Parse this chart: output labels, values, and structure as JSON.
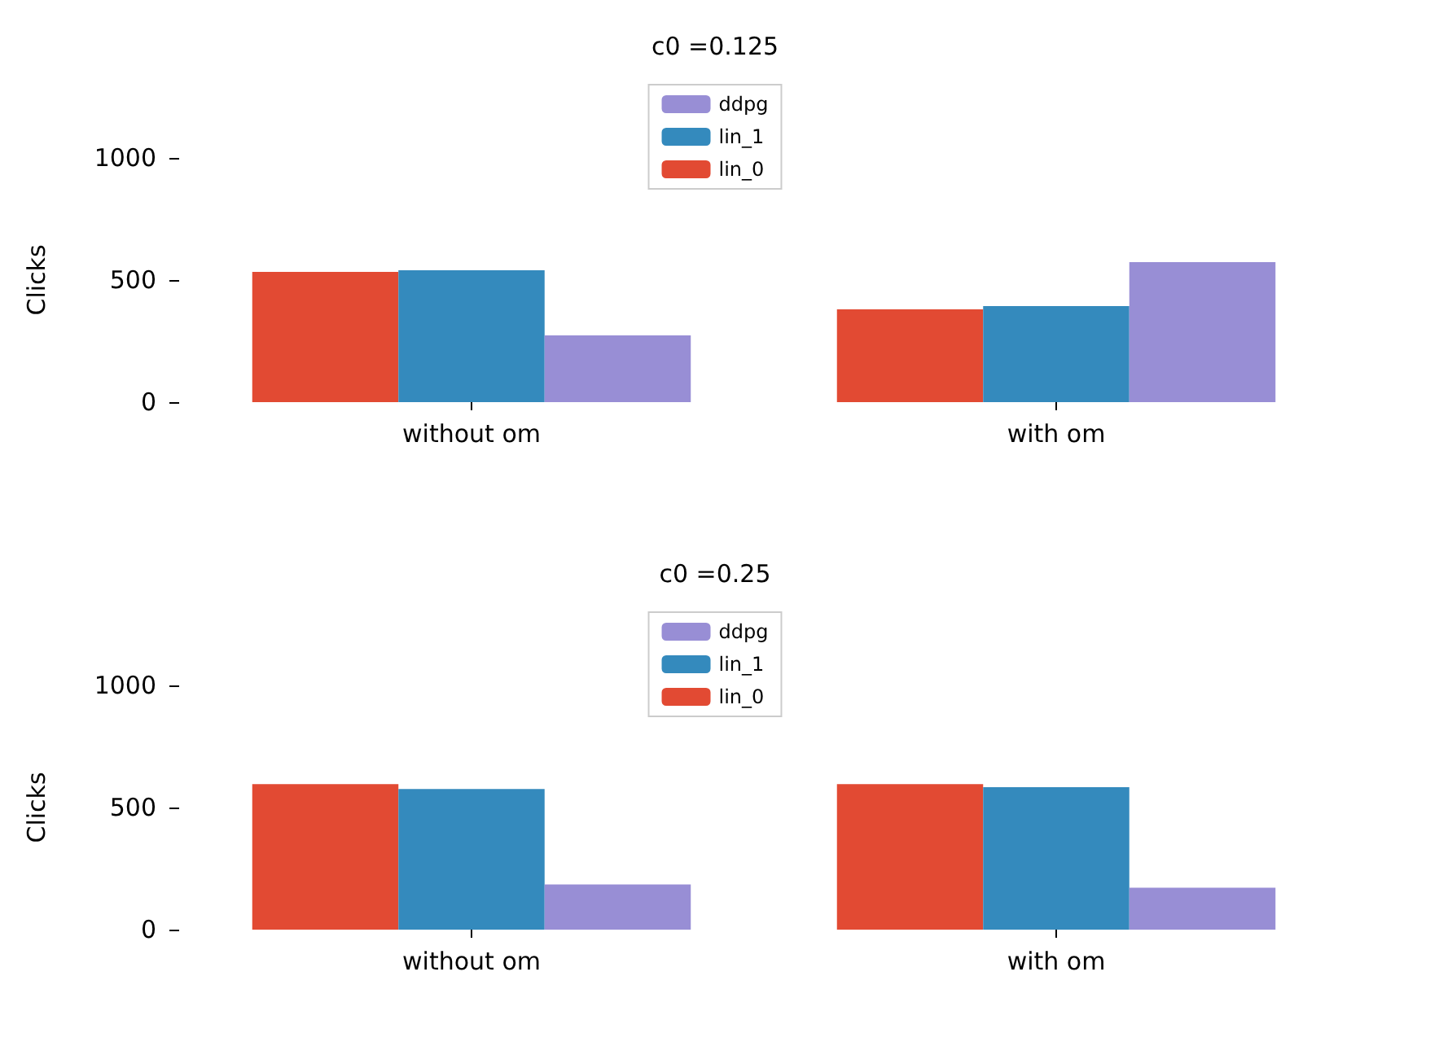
{
  "chart_data": [
    {
      "type": "bar",
      "title": "c0 =0.125",
      "ylabel": "Clicks",
      "categories": [
        "without om",
        "with om"
      ],
      "ylim": [
        0,
        1000
      ],
      "yticks": [
        0,
        500,
        1000
      ],
      "grid": false,
      "legend": "top",
      "series": [
        {
          "name": "lin_0",
          "color": "#e24a33",
          "values": [
            533,
            380
          ]
        },
        {
          "name": "lin_1",
          "color": "#348abd",
          "values": [
            540,
            393
          ]
        },
        {
          "name": "ddpg",
          "color": "#988ed5",
          "values": [
            273,
            573
          ]
        }
      ]
    },
    {
      "type": "bar",
      "title": "c0 =0.25",
      "ylabel": "Clicks",
      "categories": [
        "without om",
        "with om"
      ],
      "ylim": [
        0,
        1000
      ],
      "yticks": [
        0,
        500,
        1000
      ],
      "grid": false,
      "legend": "top",
      "series": [
        {
          "name": "lin_0",
          "color": "#e24a33",
          "values": [
            596,
            596
          ]
        },
        {
          "name": "lin_1",
          "color": "#348abd",
          "values": [
            576,
            583
          ]
        },
        {
          "name": "ddpg",
          "color": "#988ed5",
          "values": [
            185,
            172
          ]
        }
      ]
    }
  ]
}
